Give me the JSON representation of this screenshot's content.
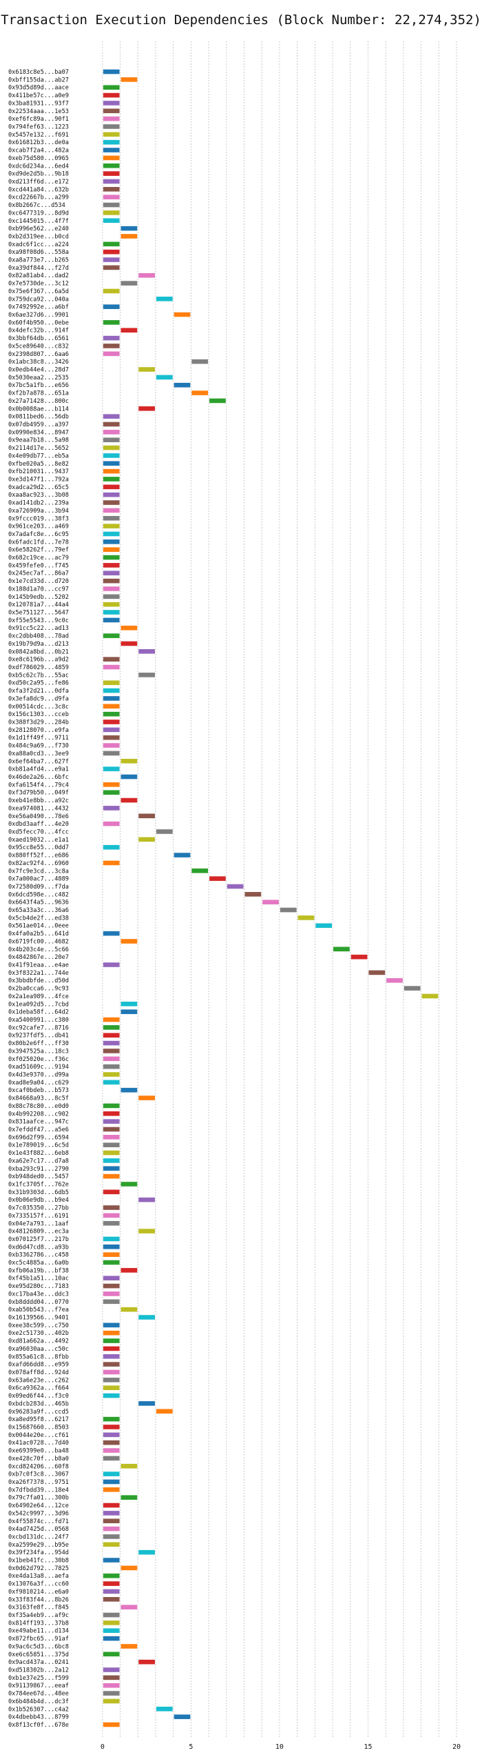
{
  "chart_data": {
    "type": "bar",
    "orientation": "horizontal-gantt",
    "title": "Transaction Execution Dependencies (Block Number: 22,274,352)",
    "xlabel": "",
    "ylabel": "",
    "xlim": [
      -0.5,
      20
    ],
    "xticks": [
      0,
      5,
      10,
      15,
      20
    ],
    "grid": true,
    "palette": [
      "#1f77b4",
      "#ff7f0e",
      "#2ca02c",
      "#d62728",
      "#9467bd",
      "#8c564b",
      "#e377c2",
      "#7f7f7f",
      "#bcbd22",
      "#17becf"
    ],
    "transactions": [
      {
        "label": "0x6183c8e5...ba07",
        "start": 0
      },
      {
        "label": "0xbff155da...ab27",
        "start": 1
      },
      {
        "label": "0x93d5d89d...aace",
        "start": 0
      },
      {
        "label": "0x411be57c...a0e9",
        "start": 0
      },
      {
        "label": "0x3ba81931...93f7",
        "start": 0
      },
      {
        "label": "0x22534aaa...1e53",
        "start": 0
      },
      {
        "label": "0xef6fc89a...90f1",
        "start": 0
      },
      {
        "label": "0x794fef63...1223",
        "start": 0
      },
      {
        "label": "0x5457e132...f691",
        "start": 0
      },
      {
        "label": "0x616812b3...de0a",
        "start": 0
      },
      {
        "label": "0xcab7f2a4...482a",
        "start": 0
      },
      {
        "label": "0xeb75d580...0965",
        "start": 0
      },
      {
        "label": "0xdc6d234a...6ed4",
        "start": 0
      },
      {
        "label": "0xd9de2d5b...9b18",
        "start": 0
      },
      {
        "label": "0xd213ff6d...e172",
        "start": 0
      },
      {
        "label": "0xcd441a84...632b",
        "start": 0
      },
      {
        "label": "0xcd22667b...a299",
        "start": 0
      },
      {
        "label": "0x8b2667c...d534",
        "start": 0
      },
      {
        "label": "0xc6477319...8d9d",
        "start": 0
      },
      {
        "label": "0xc1445015...4f7f",
        "start": 0
      },
      {
        "label": "0xb996e562...e240",
        "start": 1
      },
      {
        "label": "0xb2d319ee...b0cd",
        "start": 1
      },
      {
        "label": "0xadc6f1cc...a224",
        "start": 0
      },
      {
        "label": "0xa98f08d6...558a",
        "start": 0
      },
      {
        "label": "0xa8a773e7...b265",
        "start": 0
      },
      {
        "label": "0xa39df844...f27d",
        "start": 0
      },
      {
        "label": "0x82a81ab4...dad2",
        "start": 2
      },
      {
        "label": "0x7e5730de...3c12",
        "start": 1
      },
      {
        "label": "0x75e6f367...6a5d",
        "start": 0
      },
      {
        "label": "0x759dca92...040a",
        "start": 3
      },
      {
        "label": "0x7492992e...a6bf",
        "start": 0
      },
      {
        "label": "0x6ae327d6...9901",
        "start": 4
      },
      {
        "label": "0x60f4b950...0ebe",
        "start": 0
      },
      {
        "label": "0x4defc32b...914f",
        "start": 1
      },
      {
        "label": "0x3bbf64db...6561",
        "start": 0
      },
      {
        "label": "0x5ce89640...c832",
        "start": 0
      },
      {
        "label": "0x2398d807...6aa6",
        "start": 0
      },
      {
        "label": "0x1abc38c8...3426",
        "start": 5
      },
      {
        "label": "0x0edb44e4...28d7",
        "start": 2
      },
      {
        "label": "0x5030eaa2...2535",
        "start": 3
      },
      {
        "label": "0x7bc5a1fb...e656",
        "start": 4
      },
      {
        "label": "0xf2b7a878...651a",
        "start": 5
      },
      {
        "label": "0x27a71428...800c",
        "start": 6
      },
      {
        "label": "0x0b0088ae...b114",
        "start": 2
      },
      {
        "label": "0x0811bed6...56db",
        "start": 0
      },
      {
        "label": "0x07db4959...a397",
        "start": 0
      },
      {
        "label": "0x0990e834...8947",
        "start": 0
      },
      {
        "label": "0x9eaa7b18...5a98",
        "start": 0
      },
      {
        "label": "0x2114d17e...5652",
        "start": 0
      },
      {
        "label": "0x4e09db77...eb5a",
        "start": 0
      },
      {
        "label": "0xfbe020a5...8e82",
        "start": 0
      },
      {
        "label": "0xfb210031...9437",
        "start": 0
      },
      {
        "label": "0xe3d147f1...792a",
        "start": 0
      },
      {
        "label": "0xadca29d2...65c5",
        "start": 0
      },
      {
        "label": "0xaa8ac923...3b08",
        "start": 0
      },
      {
        "label": "0xad141db2...239a",
        "start": 0
      },
      {
        "label": "0xa726909a...3b94",
        "start": 0
      },
      {
        "label": "0x9fccc019...38f3",
        "start": 0
      },
      {
        "label": "0x961ce203...a469",
        "start": 0
      },
      {
        "label": "0x7adafc8e...6c95",
        "start": 0
      },
      {
        "label": "0x6fadc1fd...7e78",
        "start": 0
      },
      {
        "label": "0x6e58262f...79ef",
        "start": 0
      },
      {
        "label": "0x682c19ce...ac79",
        "start": 0
      },
      {
        "label": "0x459fefe0...f745",
        "start": 0
      },
      {
        "label": "0x245ec7af...86a7",
        "start": 0
      },
      {
        "label": "0x1e7cd33d...d720",
        "start": 0
      },
      {
        "label": "0x188d1a70...cc97",
        "start": 0
      },
      {
        "label": "0x145b9edb...5202",
        "start": 0
      },
      {
        "label": "0x120781a7...44a4",
        "start": 0
      },
      {
        "label": "0x5e751127...5647",
        "start": 0
      },
      {
        "label": "0xf55e5543...9c0c",
        "start": 0
      },
      {
        "label": "0x91cc5c22...ad13",
        "start": 1
      },
      {
        "label": "0xc2dbb408...78ad",
        "start": 0
      },
      {
        "label": "0x19b79d9a...d213",
        "start": 1
      },
      {
        "label": "0x0842a8bd...0b21",
        "start": 2
      },
      {
        "label": "0xe8c6196b...a9d2",
        "start": 0
      },
      {
        "label": "0xdf786029...4859",
        "start": 0
      },
      {
        "label": "0xb5c62c7b...55ac",
        "start": 2
      },
      {
        "label": "0xd50c2a95...fe86",
        "start": 0
      },
      {
        "label": "0xfa3f2d21...0dfa",
        "start": 0
      },
      {
        "label": "0x3efa8dc9...d9fa",
        "start": 0
      },
      {
        "label": "0x00514cdc...3c8c",
        "start": 0
      },
      {
        "label": "0x156c1303...cceb",
        "start": 0
      },
      {
        "label": "0x388f3d29...284b",
        "start": 0
      },
      {
        "label": "0x28128070...e9fa",
        "start": 0
      },
      {
        "label": "0x1d1ff49f...9711",
        "start": 0
      },
      {
        "label": "0x484c9a69...f730",
        "start": 0
      },
      {
        "label": "0xa88a0cd3...3ee9",
        "start": 0
      },
      {
        "label": "0x6ef64ba7...627f",
        "start": 1
      },
      {
        "label": "0xb81a4fd4...e9a1",
        "start": 0
      },
      {
        "label": "0x46de2a26...6bfc",
        "start": 1
      },
      {
        "label": "0xfa6154f4...79c4",
        "start": 0
      },
      {
        "label": "0xf3d79b50...049f",
        "start": 0
      },
      {
        "label": "0xeb41e8bb...a92c",
        "start": 1
      },
      {
        "label": "0xea974081...4432",
        "start": 0
      },
      {
        "label": "0xe56a0490...78e6",
        "start": 2
      },
      {
        "label": "0xdbd3aaff...4e20",
        "start": 0
      },
      {
        "label": "0xd5fecc70...4fcc",
        "start": 3
      },
      {
        "label": "0xaed19032...e1a1",
        "start": 2
      },
      {
        "label": "0x95cc8e55...0dd7",
        "start": 0
      },
      {
        "label": "0x880ff52f...e686",
        "start": 4
      },
      {
        "label": "0x82ac92f4...6960",
        "start": 0
      },
      {
        "label": "0x7fc9e3cd...3c8a",
        "start": 5
      },
      {
        "label": "0x7a000ac7...4889",
        "start": 6
      },
      {
        "label": "0x72580d09...f7da",
        "start": 7
      },
      {
        "label": "0x6dcd598e...c482",
        "start": 8
      },
      {
        "label": "0x6643f4a5...9636",
        "start": 9
      },
      {
        "label": "0x65a33a3c...36a6",
        "start": 10
      },
      {
        "label": "0x5cb4de2f...ed38",
        "start": 11
      },
      {
        "label": "0x561ae014...0eee",
        "start": 12
      },
      {
        "label": "0x4fa0a2b5...641d",
        "start": 0
      },
      {
        "label": "0x6719fc00...4682",
        "start": 1
      },
      {
        "label": "0x4b203c4e...5c66",
        "start": 13
      },
      {
        "label": "0x4842867e...20e7",
        "start": 14
      },
      {
        "label": "0x41f91eaa...e4ae",
        "start": 0
      },
      {
        "label": "0x3f8322a1...744e",
        "start": 15
      },
      {
        "label": "0x3bbdbfde...d50d",
        "start": 16
      },
      {
        "label": "0x2ba0cca6...9c93",
        "start": 17
      },
      {
        "label": "0x2a1ea989...4fce",
        "start": 18
      },
      {
        "label": "0x1ea092d5...7cbd",
        "start": 1
      },
      {
        "label": "0x1deba58f...64d2",
        "start": 1
      },
      {
        "label": "0xa5400991...c380",
        "start": 0
      },
      {
        "label": "0xc92cafe7...8716",
        "start": 0
      },
      {
        "label": "0x9237fdf5...db41",
        "start": 0
      },
      {
        "label": "0x80b2e6ff...ff30",
        "start": 0
      },
      {
        "label": "0x3947525a...18c3",
        "start": 0
      },
      {
        "label": "0xf025020e...f36c",
        "start": 0
      },
      {
        "label": "0xad51609c...9194",
        "start": 0
      },
      {
        "label": "0x4d3e9370...d99a",
        "start": 0
      },
      {
        "label": "0xad8e9a04...c629",
        "start": 0
      },
      {
        "label": "0xcaf0bdeb...b573",
        "start": 1
      },
      {
        "label": "0x84668a93...8c5f",
        "start": 2
      },
      {
        "label": "0x88c78c80...e0d0",
        "start": 0
      },
      {
        "label": "0x4b992208...c902",
        "start": 0
      },
      {
        "label": "0x831aafce...947c",
        "start": 0
      },
      {
        "label": "0x7efddf47...a5e6",
        "start": 0
      },
      {
        "label": "0x696d2f99...6594",
        "start": 0
      },
      {
        "label": "0x1e789019...6c5d",
        "start": 0
      },
      {
        "label": "0x1e43f882...6eb8",
        "start": 0
      },
      {
        "label": "0xa62e7c17...d7a8",
        "start": 0
      },
      {
        "label": "0xba293c91...2790",
        "start": 0
      },
      {
        "label": "0xb948ded0...5457",
        "start": 0
      },
      {
        "label": "0x1fc3705f...762e",
        "start": 1
      },
      {
        "label": "0x31b9303d...6db5",
        "start": 0
      },
      {
        "label": "0x0b06e9db...b9e4",
        "start": 2
      },
      {
        "label": "0x7c035350...27bb",
        "start": 0
      },
      {
        "label": "0x7335157f...6191",
        "start": 0
      },
      {
        "label": "0x04e7a793...1aaf",
        "start": 0
      },
      {
        "label": "0x48126809...ec3a",
        "start": 2
      },
      {
        "label": "0x070125f7...217b",
        "start": 0
      },
      {
        "label": "0xd6d47cd8...a93b",
        "start": 0
      },
      {
        "label": "0xb3362786...c458",
        "start": 0
      },
      {
        "label": "0xc5c4885a...6a0b",
        "start": 0
      },
      {
        "label": "0xfb06a19b...bf38",
        "start": 1
      },
      {
        "label": "0xf45b1a51...10ac",
        "start": 0
      },
      {
        "label": "0xe95d280c...7183",
        "start": 0
      },
      {
        "label": "0xc17ba43e...ddc3",
        "start": 0
      },
      {
        "label": "0xb8dddd04...0770",
        "start": 0
      },
      {
        "label": "0xab50b543...f7ea",
        "start": 1
      },
      {
        "label": "0x16139566...9401",
        "start": 2
      },
      {
        "label": "0xee38c599...c750",
        "start": 0
      },
      {
        "label": "0xe2c51730...402b",
        "start": 0
      },
      {
        "label": "0xd81a662a...4492",
        "start": 0
      },
      {
        "label": "0xa96030aa...c50c",
        "start": 0
      },
      {
        "label": "0x855a61c8...8fbb",
        "start": 0
      },
      {
        "label": "0xafd66dd8...e959",
        "start": 0
      },
      {
        "label": "0x078aff8d...924d",
        "start": 0
      },
      {
        "label": "0x63a6e23e...c262",
        "start": 0
      },
      {
        "label": "0x6ca9362a...f664",
        "start": 0
      },
      {
        "label": "0x09ed6f44...f3c0",
        "start": 0
      },
      {
        "label": "0xbdcb283d...465b",
        "start": 2
      },
      {
        "label": "0x96283a9f...ccd5",
        "start": 3
      },
      {
        "label": "0xa8ed95f8...6217",
        "start": 0
      },
      {
        "label": "0x15687660...8503",
        "start": 0
      },
      {
        "label": "0x0044e20e...cf61",
        "start": 0
      },
      {
        "label": "0x41ac0728...7d40",
        "start": 0
      },
      {
        "label": "0xe69399e0...ba48",
        "start": 0
      },
      {
        "label": "0xe428c70f...b8a0",
        "start": 0
      },
      {
        "label": "0xcd824206...60f8",
        "start": 1
      },
      {
        "label": "0xb7c0f3c8...3067",
        "start": 0
      },
      {
        "label": "0xa26f7378...9751",
        "start": 0
      },
      {
        "label": "0x7dfbdd39...18e4",
        "start": 0
      },
      {
        "label": "0x79c7fa01...300b",
        "start": 1
      },
      {
        "label": "0x64902e64...12ce",
        "start": 0
      },
      {
        "label": "0x542c9997...3d96",
        "start": 0
      },
      {
        "label": "0x4f55874c...fd71",
        "start": 0
      },
      {
        "label": "0x4ad7425d...0568",
        "start": 0
      },
      {
        "label": "0xcbd131dc...24f7",
        "start": 0
      },
      {
        "label": "0xa2599e29...b95e",
        "start": 0
      },
      {
        "label": "0x39f234fa...954d",
        "start": 2
      },
      {
        "label": "0x1beb41fc...30b8",
        "start": 0
      },
      {
        "label": "0x0d62d792...7825",
        "start": 1
      },
      {
        "label": "0xe4da13a8...aefa",
        "start": 0
      },
      {
        "label": "0x13076a3f...cc60",
        "start": 0
      },
      {
        "label": "0xf9810214...e6a0",
        "start": 0
      },
      {
        "label": "0x33f83f44...8b26",
        "start": 0
      },
      {
        "label": "0x3163fe8f...f845",
        "start": 1
      },
      {
        "label": "0xf35a4eb9...af9c",
        "start": 0
      },
      {
        "label": "0x814ff193...37b8",
        "start": 0
      },
      {
        "label": "0xe49abe11...d134",
        "start": 0
      },
      {
        "label": "0x872fbc65...91af",
        "start": 0
      },
      {
        "label": "0x9ac6c5d3...6bc8",
        "start": 1
      },
      {
        "label": "0xe6c65851...375d",
        "start": 0
      },
      {
        "label": "0x9acd437a...0241",
        "start": 2
      },
      {
        "label": "0xd518302b...2a12",
        "start": 0
      },
      {
        "label": "0xb1e37e25...f599",
        "start": 0
      },
      {
        "label": "0x91139867...eeaf",
        "start": 0
      },
      {
        "label": "0x784ee67d...48ee",
        "start": 0
      },
      {
        "label": "0x6b484b4d...dc3f",
        "start": 0
      },
      {
        "label": "0x1b526307...c4a2",
        "start": 3
      },
      {
        "label": "0x4dbebb43...8799",
        "start": 4
      },
      {
        "label": "0x8f13cf0f...678e",
        "start": 0
      }
    ]
  }
}
